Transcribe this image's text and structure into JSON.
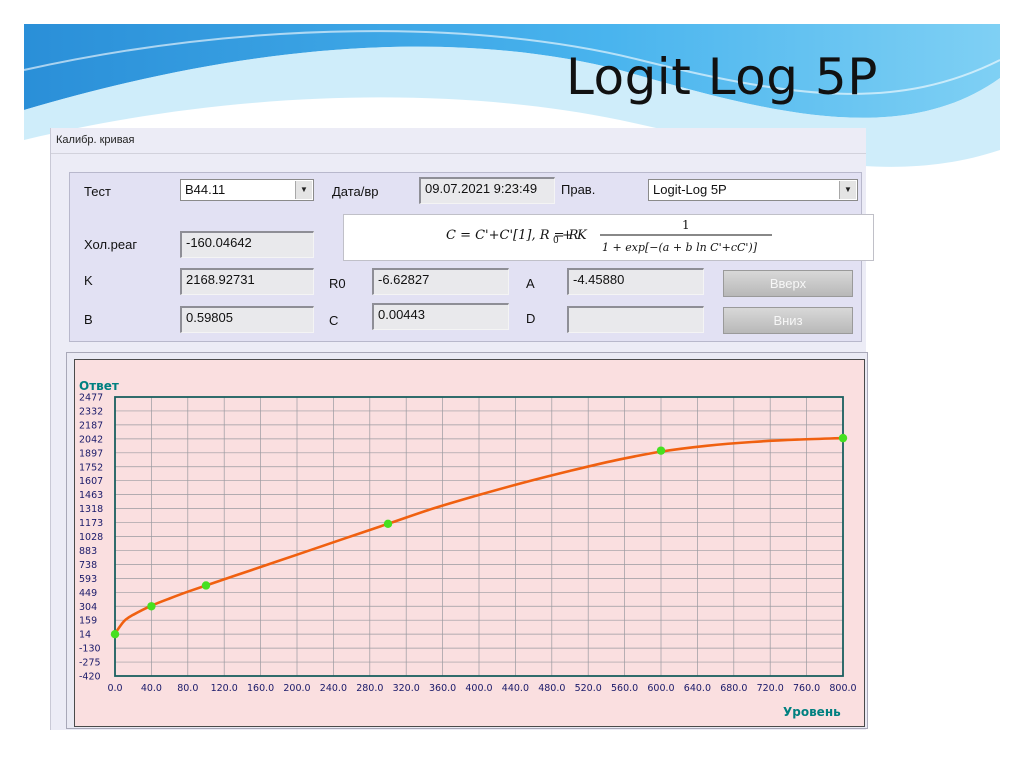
{
  "slide": {
    "title": "Logit Log 5P"
  },
  "window": {
    "title": "Калибр. кривая"
  },
  "params": {
    "test_label": "Тест",
    "test_value": "B44.11",
    "date_label": "Дата/вр",
    "date_value": "09.07.2021 9:23:49",
    "rule_label": "Прав.",
    "rule_value": "Logit-Log 5P",
    "blank_label": "Хол.реаг",
    "blank_value": "-160.04642",
    "k_label": "K",
    "k_value": "2168.92731",
    "r0_label": "R0",
    "r0_value": "-6.62827",
    "a_label": "A",
    "a_value": "-4.45880",
    "b_label": "B",
    "b_value": "0.59805",
    "c_label": "C",
    "c_value": "0.00443",
    "d_label": "D",
    "d_value": ""
  },
  "buttons": {
    "up": "Вверх",
    "down": "Вниз"
  },
  "formula": {
    "lhs": "C = C'+C'[1], R = R",
    "r0_sub": "0",
    "plus_k": "+ K",
    "numerator": "1",
    "denominator": "1 + exp[−(a + b ln C'+cC')]"
  },
  "colors": {
    "slide_wave": "#3a9fe0",
    "curve": "#f06010",
    "points": "#46e020",
    "grid": "#9a9aa0",
    "axis_text": "#008080",
    "plot_bg": "#fadfe0"
  },
  "chart_data": {
    "type": "line",
    "ylabel": "Ответ",
    "xlabel": "Уровень",
    "xlim": [
      0,
      800
    ],
    "ylim": [
      -420,
      2477
    ],
    "y_ticks": [
      "2477",
      "2332",
      "2187",
      "2042",
      "1897",
      "1752",
      "1607",
      "1463",
      "1318",
      "1173",
      "1028",
      "883",
      "738",
      "593",
      "449",
      "304",
      "159",
      "14",
      "-130",
      "-275",
      "-420"
    ],
    "x_ticks": [
      "0.0",
      "40.0",
      "80.0",
      "120.0",
      "160.0",
      "200.0",
      "240.0",
      "280.0",
      "320.0",
      "360.0",
      "400.0",
      "440.0",
      "480.0",
      "520.0",
      "560.0",
      "600.0",
      "640.0",
      "680.0",
      "720.0",
      "760.0",
      "800.0"
    ],
    "calibration_points": [
      {
        "x": 0,
        "y": 14
      },
      {
        "x": 40,
        "y": 304
      },
      {
        "x": 100,
        "y": 520
      },
      {
        "x": 300,
        "y": 1160
      },
      {
        "x": 600,
        "y": 1920
      },
      {
        "x": 800,
        "y": 2050
      }
    ],
    "curve": [
      {
        "x": 0,
        "y": 20
      },
      {
        "x": 10,
        "y": 150
      },
      {
        "x": 20,
        "y": 215
      },
      {
        "x": 40,
        "y": 310
      },
      {
        "x": 60,
        "y": 385
      },
      {
        "x": 80,
        "y": 455
      },
      {
        "x": 100,
        "y": 520
      },
      {
        "x": 150,
        "y": 680
      },
      {
        "x": 200,
        "y": 840
      },
      {
        "x": 250,
        "y": 1000
      },
      {
        "x": 300,
        "y": 1160
      },
      {
        "x": 350,
        "y": 1320
      },
      {
        "x": 400,
        "y": 1460
      },
      {
        "x": 450,
        "y": 1590
      },
      {
        "x": 500,
        "y": 1710
      },
      {
        "x": 550,
        "y": 1820
      },
      {
        "x": 600,
        "y": 1910
      },
      {
        "x": 650,
        "y": 1970
      },
      {
        "x": 700,
        "y": 2010
      },
      {
        "x": 750,
        "y": 2035
      },
      {
        "x": 800,
        "y": 2050
      }
    ]
  }
}
